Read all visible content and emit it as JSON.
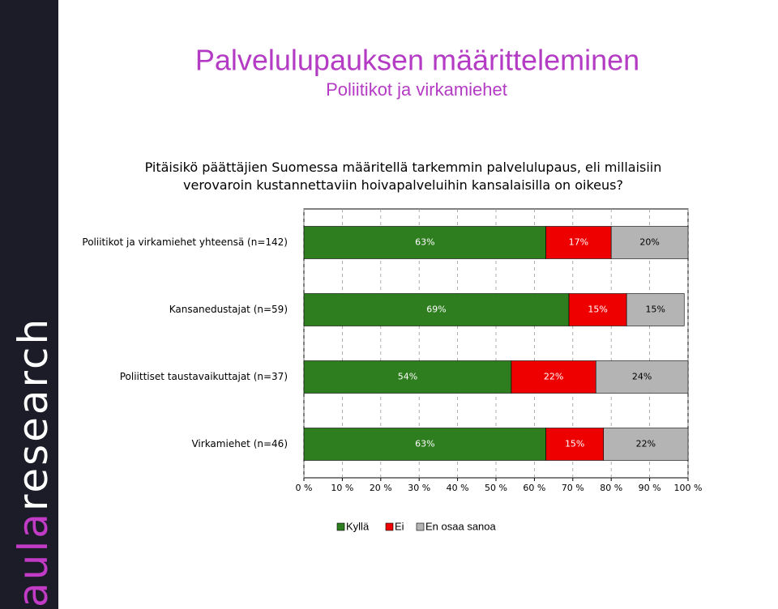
{
  "sidebar": {
    "brand_a": "aula",
    "brand_b": "research"
  },
  "header": {
    "title": "Palvelulupauksen määritteleminen",
    "subtitle": "Poliitikot ja virkamiehet"
  },
  "chart_data": {
    "type": "stacked-bar-horizontal",
    "title": "Pitäisikö päättäjien Suomessa määritellä tarkemmin palvelulupaus, eli millaisiin verovaroin kustannettaviin hoivapalveluihin kansalaisilla on oikeus?",
    "categories": [
      "Poliitikot ja virkamiehet yhteensä (n=142)",
      "Kansanedustajat (n=59)",
      "Poliittiset taustavaikuttajat (n=37)",
      "Virkamiehet (n=46)"
    ],
    "series": [
      {
        "name": "Kyllä",
        "color": "#2e7d1f",
        "values": [
          63,
          69,
          54,
          63
        ],
        "value_labels": [
          "63%",
          "69%",
          "54%",
          "63%"
        ]
      },
      {
        "name": "Ei",
        "color": "#ee0000",
        "values": [
          17,
          15,
          22,
          15
        ],
        "value_labels": [
          "17%",
          "15%",
          "22%",
          "15%"
        ]
      },
      {
        "name": "En osaa sanoa",
        "color": "#b4b4b4",
        "values": [
          20,
          15,
          24,
          22
        ],
        "value_labels": [
          "20%",
          "15%",
          "24%",
          "22%"
        ]
      }
    ],
    "xlim": [
      0,
      100
    ],
    "xticks": [
      {
        "value": 0,
        "label": "0 %"
      },
      {
        "value": 10,
        "label": "10 %"
      },
      {
        "value": 20,
        "label": "20 %"
      },
      {
        "value": 30,
        "label": "30 %"
      },
      {
        "value": 40,
        "label": "40 %"
      },
      {
        "value": 50,
        "label": "50 %"
      },
      {
        "value": 60,
        "label": "60 %"
      },
      {
        "value": 70,
        "label": "70 %"
      },
      {
        "value": 80,
        "label": "80 %"
      },
      {
        "value": 90,
        "label": "90 %"
      },
      {
        "value": 100,
        "label": "100 %"
      }
    ],
    "grid": true
  }
}
